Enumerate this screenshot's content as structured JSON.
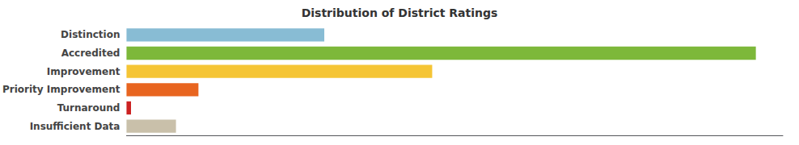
{
  "chart_data": {
    "type": "bar",
    "title": "Distribution of District Ratings",
    "orientation": "horizontal",
    "categories": [
      "Insufficient Data",
      "Turnaround",
      "Priority Improvement",
      "Improvement",
      "Accredited",
      "Distinction"
    ],
    "values": [
      55,
      5,
      80,
      340,
      700,
      220
    ],
    "colors": [
      "#c9c0aa",
      "#cc2222",
      "#e86520",
      "#f5c535",
      "#7db83a",
      "#88bcd4"
    ],
    "xlim": [
      0,
      730
    ],
    "tick_labels": "y",
    "grid": false
  }
}
